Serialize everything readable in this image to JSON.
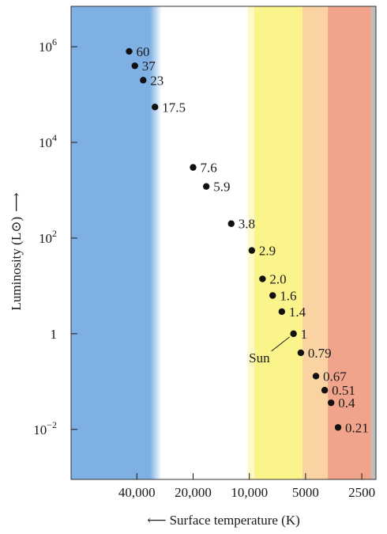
{
  "chart_data": {
    "type": "scatter",
    "xlabel": "Surface temperature (K)",
    "xlabel_arrow": "⟵",
    "ylabel": "Luminosity (L⊙)",
    "ylabel_arrow": "⟶",
    "x_scale": "log",
    "x_reversed": true,
    "y_scale": "log",
    "xlim": [
      90000,
      2100
    ],
    "ylim": [
      0.0009,
      7000000
    ],
    "x_ticks": [
      {
        "value": 40000,
        "label": "40,000"
      },
      {
        "value": 20000,
        "label": "20,000"
      },
      {
        "value": 10000,
        "label": "10,000"
      },
      {
        "value": 5000,
        "label": "5000"
      },
      {
        "value": 2500,
        "label": "2500"
      }
    ],
    "y_ticks": [
      {
        "value": 1000000,
        "base": "10",
        "exp": "6"
      },
      {
        "value": 10000,
        "base": "10",
        "exp": "4"
      },
      {
        "value": 100,
        "base": "10",
        "exp": "2"
      },
      {
        "value": 1,
        "base": "1",
        "exp": ""
      },
      {
        "value": 0.01,
        "base": "10",
        "exp": "−2"
      }
    ],
    "color_bands": [
      {
        "from": 90000,
        "to": 34000,
        "color": "#7fb0e4"
      },
      {
        "from": 34000,
        "to": 29500,
        "color": "#c9dff5"
      },
      {
        "from": 29500,
        "to": 10200,
        "color": "#ffffff"
      },
      {
        "from": 10200,
        "to": 9400,
        "color": "#fdfac8"
      },
      {
        "from": 9400,
        "to": 5200,
        "color": "#fbf48a"
      },
      {
        "from": 5200,
        "to": 3800,
        "color": "#fbd3a3"
      },
      {
        "from": 3800,
        "to": 2220,
        "color": "#f1a48c"
      },
      {
        "from": 2220,
        "to": 2100,
        "color": "#bdbdbd"
      }
    ],
    "points": [
      {
        "mass": "60",
        "x": 44000,
        "y": 800000
      },
      {
        "mass": "37",
        "x": 41000,
        "y": 400000
      },
      {
        "mass": "23",
        "x": 37000,
        "y": 200000
      },
      {
        "mass": "17.5",
        "x": 32000,
        "y": 55000
      },
      {
        "mass": "7.6",
        "x": 20000,
        "y": 3000
      },
      {
        "mass": "5.9",
        "x": 17000,
        "y": 1200
      },
      {
        "mass": "3.8",
        "x": 12500,
        "y": 200
      },
      {
        "mass": "2.9",
        "x": 9700,
        "y": 55
      },
      {
        "mass": "2.0",
        "x": 8500,
        "y": 14
      },
      {
        "mass": "1.6",
        "x": 7500,
        "y": 6.3
      },
      {
        "mass": "1.4",
        "x": 6700,
        "y": 2.9
      },
      {
        "mass": "1",
        "x": 5800,
        "y": 1
      },
      {
        "mass": "0.79",
        "x": 5300,
        "y": 0.4
      },
      {
        "mass": "0.67",
        "x": 4400,
        "y": 0.13
      },
      {
        "mass": "0.51",
        "x": 3950,
        "y": 0.066
      },
      {
        "mass": "0.4",
        "x": 3650,
        "y": 0.036
      },
      {
        "mass": "0.21",
        "x": 3350,
        "y": 0.011
      }
    ],
    "annotation": {
      "text": "Sun",
      "target_mass": "1"
    },
    "grid": false,
    "legend": "none"
  }
}
